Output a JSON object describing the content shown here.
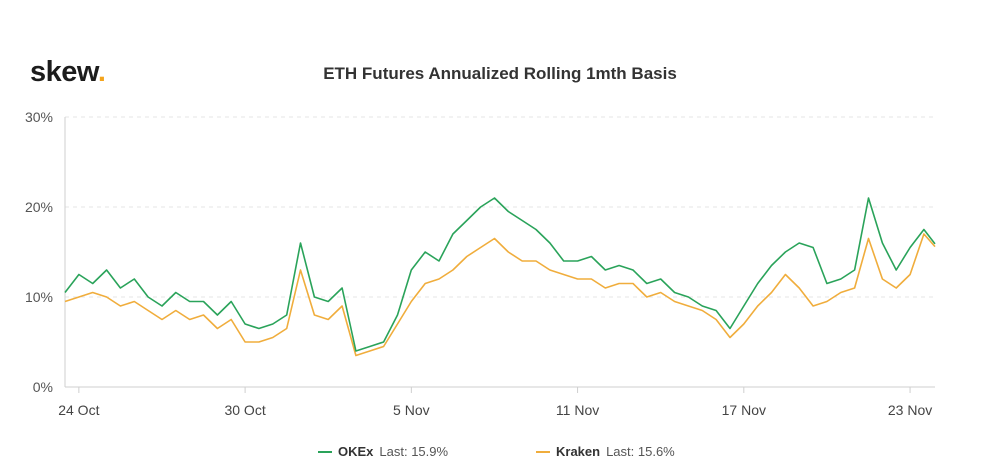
{
  "brand": {
    "name": "skew",
    "dot": "."
  },
  "chart_data": {
    "type": "line",
    "title": "ETH Futures Annualized Rolling 1mth Basis",
    "xlabel": "",
    "ylabel": "",
    "ylim": [
      0,
      30
    ],
    "y_ticks": [
      "0%",
      "10%",
      "20%",
      "30%"
    ],
    "x_range_days": [
      0,
      31.4
    ],
    "x_ticks": [
      {
        "label": "24 Oct",
        "day": 0.5
      },
      {
        "label": "30 Oct",
        "day": 6.5
      },
      {
        "label": "5 Nov",
        "day": 12.5
      },
      {
        "label": "11 Nov",
        "day": 18.5
      },
      {
        "label": "17 Nov",
        "day": 24.5
      },
      {
        "label": "23 Nov",
        "day": 30.5
      }
    ],
    "x_days": [
      0,
      0.5,
      1,
      1.5,
      2,
      2.5,
      3,
      3.5,
      4,
      4.5,
      5,
      5.5,
      6,
      6.5,
      7,
      7.5,
      8,
      8.5,
      9,
      9.5,
      10,
      10.5,
      11,
      11.5,
      12,
      12.5,
      13,
      13.5,
      14,
      14.5,
      15,
      15.5,
      16,
      16.5,
      17,
      17.5,
      18,
      18.5,
      19,
      19.5,
      20,
      20.5,
      21,
      21.5,
      22,
      22.5,
      23,
      23.5,
      24,
      24.5,
      25,
      25.5,
      26,
      26.5,
      27,
      27.5,
      28,
      28.5,
      29,
      29.5,
      30,
      30.5,
      31,
      31.4
    ],
    "series": [
      {
        "name": "OKEx",
        "color": "#2aa35a",
        "last": "Last: 15.9%",
        "values": [
          10.5,
          12.5,
          11.5,
          13.0,
          11.0,
          12.0,
          10.0,
          9.0,
          10.5,
          9.5,
          9.5,
          8.0,
          9.5,
          7.0,
          6.5,
          7.0,
          8.0,
          16.0,
          10.0,
          9.5,
          11.0,
          4.0,
          4.5,
          5.0,
          8.0,
          13.0,
          15.0,
          14.0,
          17.0,
          18.5,
          20.0,
          21.0,
          19.5,
          18.5,
          17.5,
          16.0,
          14.0,
          14.0,
          14.5,
          13.0,
          13.5,
          13.0,
          11.5,
          12.0,
          10.5,
          10.0,
          9.0,
          8.5,
          6.5,
          9.0,
          11.5,
          13.5,
          15.0,
          16.0,
          15.5,
          11.5,
          12.0,
          13.0,
          21.0,
          16.0,
          13.0,
          15.5,
          17.5,
          15.9
        ]
      },
      {
        "name": "Kraken",
        "color": "#f0ad3c",
        "last": "Last: 15.6%",
        "values": [
          9.5,
          10.0,
          10.5,
          10.0,
          9.0,
          9.5,
          8.5,
          7.5,
          8.5,
          7.5,
          8.0,
          6.5,
          7.5,
          5.0,
          5.0,
          5.5,
          6.5,
          13.0,
          8.0,
          7.5,
          9.0,
          3.5,
          4.0,
          4.5,
          7.0,
          9.5,
          11.5,
          12.0,
          13.0,
          14.5,
          15.5,
          16.5,
          15.0,
          14.0,
          14.0,
          13.0,
          12.5,
          12.0,
          12.0,
          11.0,
          11.5,
          11.5,
          10.0,
          10.5,
          9.5,
          9.0,
          8.5,
          7.5,
          5.5,
          7.0,
          9.0,
          10.5,
          12.5,
          11.0,
          9.0,
          9.5,
          10.5,
          11.0,
          16.5,
          12.0,
          11.0,
          12.5,
          17.0,
          15.6
        ]
      }
    ]
  }
}
